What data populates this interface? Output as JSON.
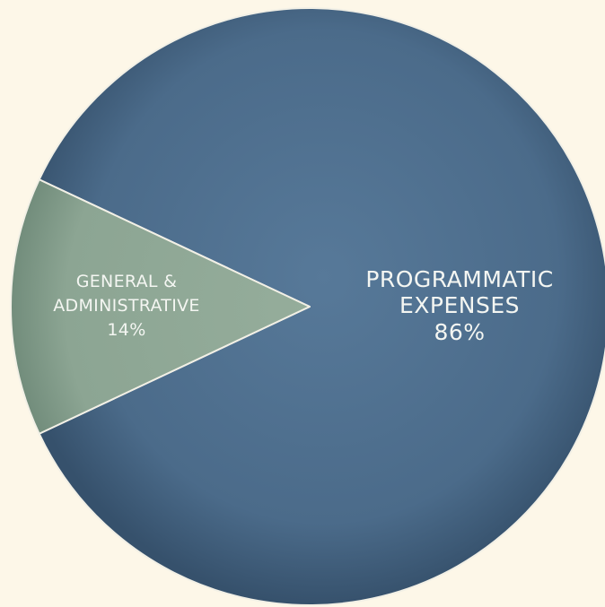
{
  "colors": {
    "background": "#fdf7e8",
    "programmatic": "#4d6d8c",
    "general": "#8fa896",
    "divider": "#f2f0e6",
    "label": "#f4f6f2"
  },
  "chart_data": {
    "type": "pie",
    "title": "",
    "slices": [
      {
        "label_lines": [
          "PROGRAMMATIC",
          "EXPENSES"
        ],
        "value": 86,
        "value_label": "86%",
        "color": "#4d6d8c"
      },
      {
        "label_lines": [
          "GENERAL &",
          "ADMINISTRATIVE"
        ],
        "value": 14,
        "value_label": "14%",
        "color": "#8fa896"
      }
    ],
    "legend": "none",
    "grid": false
  }
}
